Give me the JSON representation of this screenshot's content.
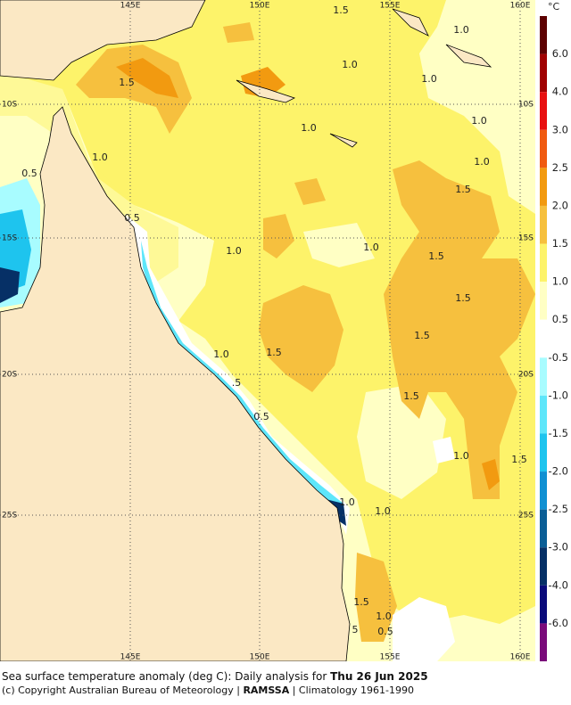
{
  "map": {
    "lon_labels": [
      "145E",
      "150E",
      "155E",
      "160E"
    ],
    "lat_labels": [
      "10S",
      "15S",
      "20S",
      "25S"
    ],
    "contour_labels": [
      "1.5",
      "1.0",
      "1.0",
      "1.0",
      "1.5",
      "1.0",
      "1.0",
      "1.0",
      "0.5",
      "1.0",
      "1.5",
      "0.5",
      "1.0",
      "1.0",
      "1.5",
      "1.5",
      "1.5",
      "1.0",
      "1.5",
      ".5",
      "1.5",
      "0.5",
      "1.0",
      "1.5",
      "1.0",
      "1.0",
      "1.5",
      "1.0",
      "0.5",
      "5"
    ]
  },
  "colorbar": {
    "unit": "°C",
    "labels": [
      "6.0",
      "4.0",
      "3.0",
      "2.5",
      "2.0",
      "1.5",
      "1.0",
      "0.5",
      "-0.5",
      "-1.0",
      "-1.5",
      "-2.0",
      "-2.5",
      "-3.0",
      "-4.0",
      "-6.0"
    ],
    "colors": [
      "#5c0000",
      "#a00000",
      "#e81010",
      "#f05a10",
      "#f29a10",
      "#f6c03e",
      "#fdf36a",
      "#ffffc4",
      "#ffffff",
      "#a8fcff",
      "#5ee6fa",
      "#1ec4ee",
      "#1090d2",
      "#0a5e96",
      "#063066",
      "#0a0a7a",
      "#7a0a7a"
    ]
  },
  "caption": {
    "line1_text": "Sea surface temperature anomaly (deg C): Daily analysis for ",
    "line1_date": "Thu 26 Jun 2025",
    "line2_pre": "(c) Copyright Australian Bureau of Meteorology | ",
    "line2_bold": "RAMSSA",
    "line2_post": " | Climatology 1961-1990"
  }
}
